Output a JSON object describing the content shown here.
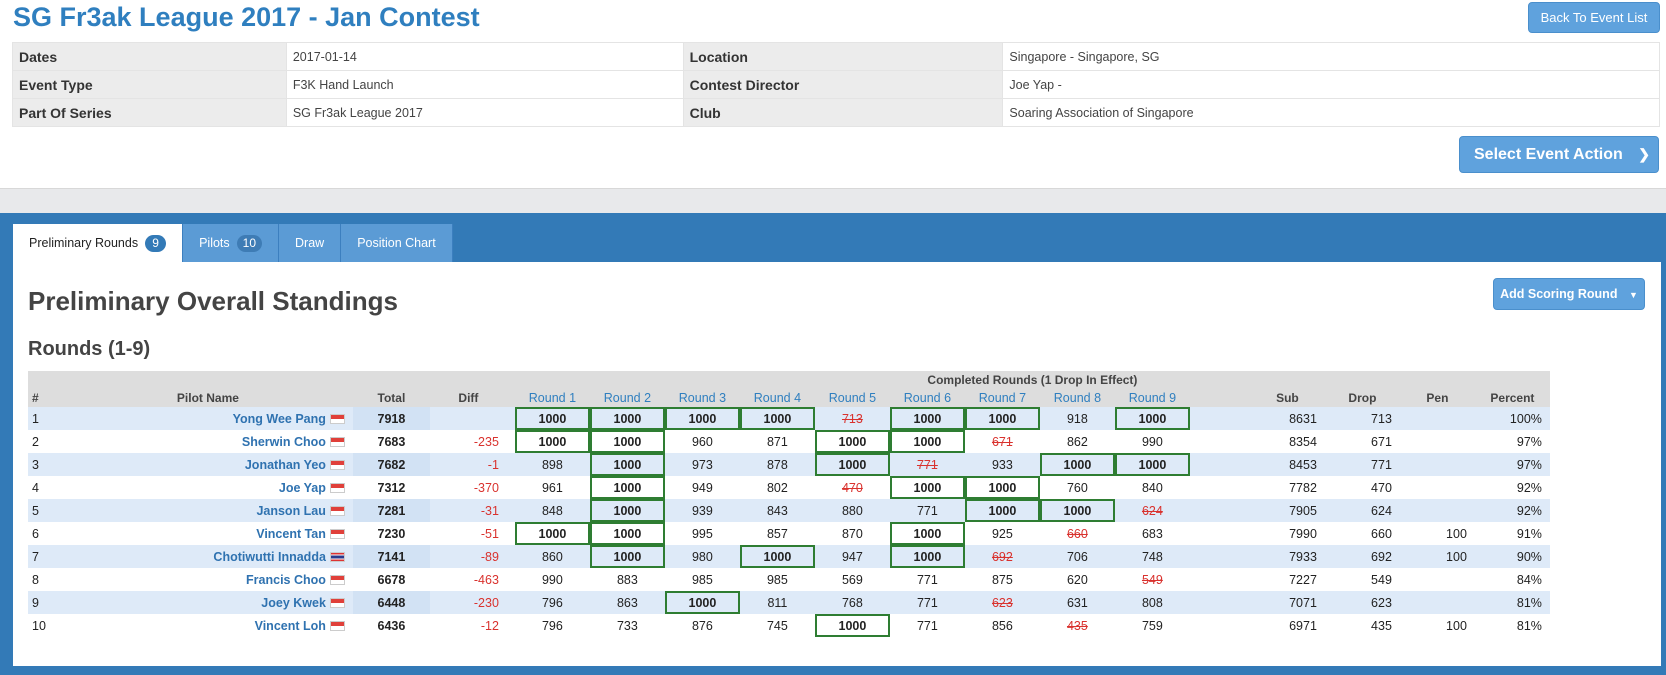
{
  "event": {
    "title": "SG Fr3ak League 2017 - Jan Contest",
    "back_label": "Back To Event List",
    "action_label": "Select Event Action",
    "info": [
      {
        "label": "Dates",
        "value": "2017-01-14",
        "label2": "Location",
        "value2": "Singapore - Singapore, SG"
      },
      {
        "label": "Event Type",
        "value": "F3K Hand Launch",
        "label2": "Contest Director",
        "value2": "Joe Yap -"
      },
      {
        "label": "Part Of Series",
        "value": "SG Fr3ak League 2017",
        "label2": "Club",
        "value2": "Soaring Association of Singapore"
      }
    ]
  },
  "tabs": [
    {
      "label": "Preliminary Rounds",
      "badge": "9",
      "active": true
    },
    {
      "label": "Pilots",
      "badge": "10",
      "active": false
    },
    {
      "label": "Draw",
      "badge": "",
      "active": false
    },
    {
      "label": "Position Chart",
      "badge": "",
      "active": false
    }
  ],
  "standings": {
    "title": "Preliminary Overall Standings",
    "subtitle": "Rounds (1-9)",
    "add_label": "Add Scoring Round",
    "group_header": "Completed Rounds (1 Drop In Effect)",
    "headers": {
      "num": "#",
      "pilot": "Pilot Name",
      "total": "Total",
      "diff": "Diff",
      "sub": "Sub",
      "drop": "Drop",
      "pen": "Pen",
      "percent": "Percent"
    },
    "rounds": [
      "Round 1",
      "Round 2",
      "Round 3",
      "Round 4",
      "Round 5",
      "Round 6",
      "Round 7",
      "Round 8",
      "Round 9"
    ],
    "rows": [
      {
        "num": "1",
        "pilot": "Yong Wee Pang",
        "flag": "sg",
        "total": "7918",
        "diff": "",
        "scores": [
          "1000",
          "1000",
          "1000",
          "1000",
          "713",
          "1000",
          "1000",
          "918",
          "1000"
        ],
        "highlight": [
          0,
          1,
          2,
          3,
          5,
          6,
          8
        ],
        "dropped": 4,
        "sub": "8631",
        "drop": "713",
        "pen": "",
        "percent": "100%"
      },
      {
        "num": "2",
        "pilot": "Sherwin Choo",
        "flag": "sg",
        "total": "7683",
        "diff": "-235",
        "scores": [
          "1000",
          "1000",
          "960",
          "871",
          "1000",
          "1000",
          "671",
          "862",
          "990"
        ],
        "highlight": [
          0,
          1,
          4,
          5
        ],
        "dropped": 6,
        "sub": "8354",
        "drop": "671",
        "pen": "",
        "percent": "97%"
      },
      {
        "num": "3",
        "pilot": "Jonathan Yeo",
        "flag": "sg",
        "total": "7682",
        "diff": "-1",
        "scores": [
          "898",
          "1000",
          "973",
          "878",
          "1000",
          "771",
          "933",
          "1000",
          "1000"
        ],
        "highlight": [
          1,
          4,
          7,
          8
        ],
        "dropped": 5,
        "sub": "8453",
        "drop": "771",
        "pen": "",
        "percent": "97%"
      },
      {
        "num": "4",
        "pilot": "Joe Yap",
        "flag": "sg",
        "total": "7312",
        "diff": "-370",
        "scores": [
          "961",
          "1000",
          "949",
          "802",
          "470",
          "1000",
          "1000",
          "760",
          "840"
        ],
        "highlight": [
          1,
          5,
          6
        ],
        "dropped": 4,
        "sub": "7782",
        "drop": "470",
        "pen": "",
        "percent": "92%"
      },
      {
        "num": "5",
        "pilot": "Janson Lau",
        "flag": "sg",
        "total": "7281",
        "diff": "-31",
        "scores": [
          "848",
          "1000",
          "939",
          "843",
          "880",
          "771",
          "1000",
          "1000",
          "624"
        ],
        "highlight": [
          1,
          6,
          7
        ],
        "dropped": 8,
        "sub": "7905",
        "drop": "624",
        "pen": "",
        "percent": "92%"
      },
      {
        "num": "6",
        "pilot": "Vincent Tan",
        "flag": "sg",
        "total": "7230",
        "diff": "-51",
        "scores": [
          "1000",
          "1000",
          "995",
          "857",
          "870",
          "1000",
          "925",
          "660",
          "683"
        ],
        "highlight": [
          0,
          1,
          5
        ],
        "dropped": 7,
        "sub": "7990",
        "drop": "660",
        "pen": "100",
        "percent": "91%"
      },
      {
        "num": "7",
        "pilot": "Chotiwutti Innadda",
        "flag": "th",
        "total": "7141",
        "diff": "-89",
        "scores": [
          "860",
          "1000",
          "980",
          "1000",
          "947",
          "1000",
          "692",
          "706",
          "748"
        ],
        "highlight": [
          1,
          3,
          5
        ],
        "dropped": 6,
        "sub": "7933",
        "drop": "692",
        "pen": "100",
        "percent": "90%"
      },
      {
        "num": "8",
        "pilot": "Francis Choo",
        "flag": "sg",
        "total": "6678",
        "diff": "-463",
        "scores": [
          "990",
          "883",
          "985",
          "985",
          "569",
          "771",
          "875",
          "620",
          "549"
        ],
        "highlight": [],
        "dropped": 8,
        "sub": "7227",
        "drop": "549",
        "pen": "",
        "percent": "84%"
      },
      {
        "num": "9",
        "pilot": "Joey Kwek",
        "flag": "sg",
        "total": "6448",
        "diff": "-230",
        "scores": [
          "796",
          "863",
          "1000",
          "811",
          "768",
          "771",
          "623",
          "631",
          "808"
        ],
        "highlight": [
          2
        ],
        "dropped": 6,
        "sub": "7071",
        "drop": "623",
        "pen": "",
        "percent": "81%"
      },
      {
        "num": "10",
        "pilot": "Vincent Loh",
        "flag": "sg",
        "total": "6436",
        "diff": "-12",
        "scores": [
          "796",
          "733",
          "876",
          "745",
          "1000",
          "771",
          "856",
          "435",
          "759"
        ],
        "highlight": [
          4
        ],
        "dropped": 7,
        "sub": "6971",
        "drop": "435",
        "pen": "100",
        "percent": "81%"
      }
    ]
  }
}
